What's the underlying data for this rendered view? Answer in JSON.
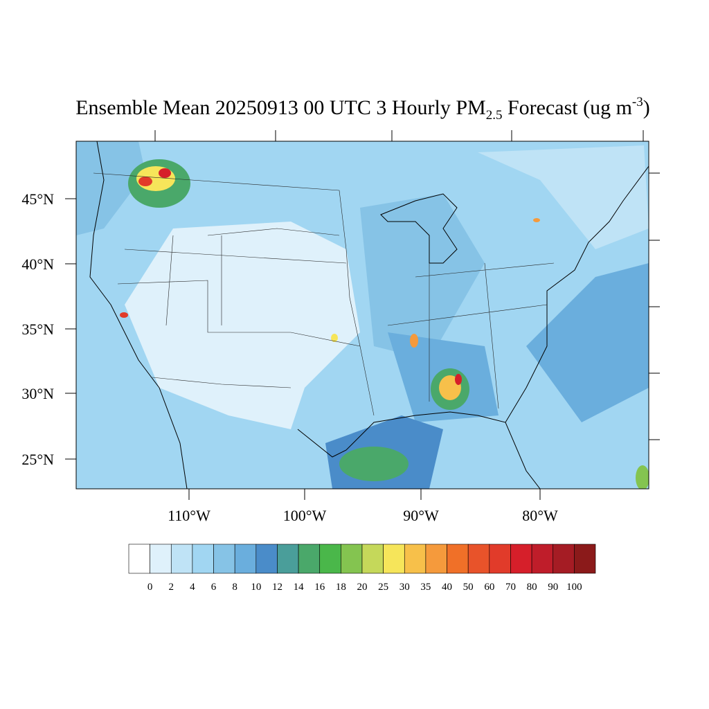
{
  "map_data": {
    "title": {
      "main": "Ensemble Mean 20250913 00 UTC 3 Hourly PM",
      "sub": "2.5",
      "mid": " Forecast (ug m",
      "sup": "-3",
      "end": ")"
    },
    "lat_labels": [
      "45°N",
      "40°N",
      "35°N",
      "30°N",
      "25°N"
    ],
    "lon_labels": [
      "110°W",
      "100°W",
      "90°W",
      "80°W"
    ],
    "colorbar": {
      "levels": [
        0,
        2,
        4,
        6,
        8,
        10,
        12,
        14,
        16,
        18,
        20,
        25,
        30,
        35,
        40,
        50,
        60,
        70,
        80,
        90,
        100
      ],
      "colors": [
        "#ffffff",
        "#dff1fb",
        "#bfe3f6",
        "#a1d6f2",
        "#86c3e6",
        "#6aaedd",
        "#4a8cc9",
        "#4a9e9a",
        "#4aa86a",
        "#4ab74a",
        "#84c450",
        "#c5d85a",
        "#f6e55a",
        "#f7c04a",
        "#f59a3c",
        "#f07028",
        "#e8532a",
        "#e13b2a",
        "#d61f2a",
        "#bf1d2a",
        "#a51c24",
        "#8b1a1a"
      ]
    }
  }
}
